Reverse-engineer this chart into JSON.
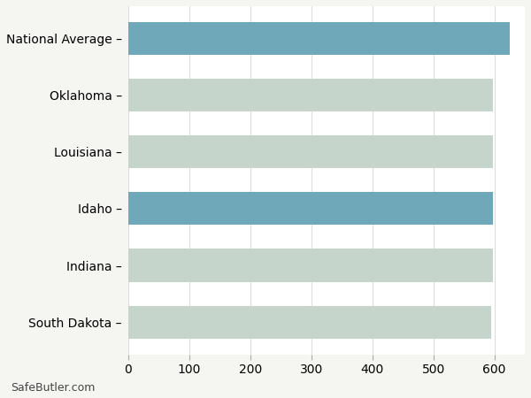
{
  "categories": [
    "National Average",
    "Oklahoma",
    "Louisiana",
    "Idaho",
    "Indiana",
    "South Dakota"
  ],
  "values": [
    625,
    597,
    597,
    597,
    597,
    595
  ],
  "bar_colors": [
    "#6fa8b8",
    "#c5d5cb",
    "#c5d5cb",
    "#6fa8b8",
    "#c5d5cb",
    "#c5d5cb"
  ],
  "background_color": "#f5f5f2",
  "plot_background": "#ffffff",
  "grid_color": "#dddddd",
  "xlim": [
    0,
    650
  ],
  "xticks": [
    0,
    100,
    200,
    300,
    400,
    500,
    600
  ],
  "footer_text": "SafeButler.com",
  "tick_fontsize": 10,
  "label_fontsize": 10,
  "bar_height": 0.58
}
